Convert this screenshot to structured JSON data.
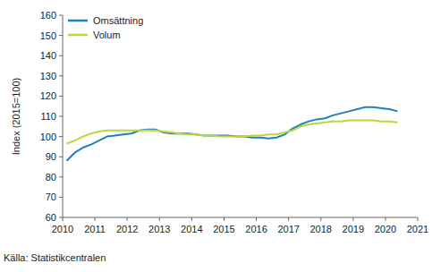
{
  "chart_data": {
    "type": "line",
    "y_label": "Index (2015=100)",
    "caption": "Källa: Statistikcentralen",
    "x": [
      2010.125,
      2010.375,
      2010.625,
      2010.875,
      2011.125,
      2011.375,
      2011.625,
      2011.875,
      2012.125,
      2012.375,
      2012.625,
      2012.875,
      2013.125,
      2013.375,
      2013.625,
      2013.875,
      2014.125,
      2014.375,
      2014.625,
      2014.875,
      2015.125,
      2015.375,
      2015.625,
      2015.875,
      2016.125,
      2016.375,
      2016.625,
      2016.875,
      2017.125,
      2017.375,
      2017.625,
      2017.875,
      2018.125,
      2018.375,
      2018.625,
      2018.875,
      2019.125,
      2019.375,
      2019.625,
      2019.875,
      2020.125,
      2020.375
    ],
    "series": [
      {
        "name": "Omsättning",
        "color": "#1f80bd",
        "values": [
          88,
          92,
          94.5,
          96,
          98,
          100,
          100.5,
          101,
          101.5,
          103,
          103.5,
          103.5,
          102,
          101.5,
          101.5,
          101.5,
          101,
          100.5,
          100.5,
          100.5,
          100.5,
          100,
          100,
          99.5,
          99.5,
          99,
          99.5,
          101,
          104,
          106,
          107.5,
          108.5,
          109,
          110.5,
          111.5,
          112.5,
          113.5,
          114.5,
          114.5,
          114,
          113.5,
          112.5
        ]
      },
      {
        "name": "Volum",
        "color": "#bcd63a",
        "values": [
          96.5,
          98,
          100,
          101.5,
          102.5,
          103,
          103,
          103,
          103,
          103,
          103,
          103,
          102.5,
          102,
          101.5,
          101,
          101,
          100.5,
          100.5,
          100,
          100,
          100,
          100,
          100.5,
          100.5,
          101,
          101,
          102,
          103,
          105,
          106,
          106.5,
          107,
          107.5,
          107.5,
          108,
          108,
          108,
          108,
          107.5,
          107.5,
          107
        ]
      }
    ],
    "xlim": [
      2010,
      2021
    ],
    "xticks": [
      2010,
      2011,
      2012,
      2013,
      2014,
      2015,
      2016,
      2017,
      2018,
      2019,
      2020,
      2021
    ],
    "ylim": [
      60,
      160
    ],
    "yticks": [
      60,
      70,
      80,
      90,
      100,
      110,
      120,
      130,
      140,
      150,
      160
    ],
    "grid": false,
    "legend": "top-left"
  }
}
